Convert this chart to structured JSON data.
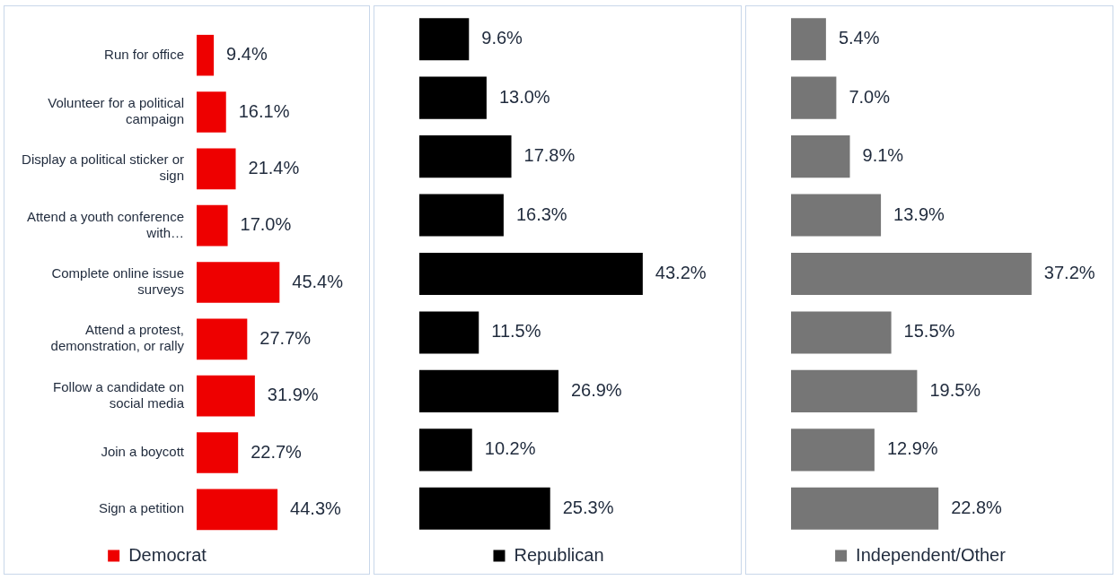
{
  "chart_data": [
    {
      "type": "bar",
      "orientation": "horizontal",
      "tick_labels": "y",
      "legend": "bottom",
      "categories": [
        "Run for office",
        "Volunteer for a political campaign",
        "Display a political sticker or sign",
        "Attend a youth conference with…",
        "Complete online issue surveys",
        "Attend a protest, demonstration, or rally",
        "Follow a candidate on social media",
        "Join a boycott",
        "Sign a petition"
      ],
      "series": [
        {
          "name": "Democrat",
          "color": "#ee0000",
          "values": [
            9.4,
            16.1,
            21.4,
            17.0,
            45.4,
            27.7,
            31.9,
            22.7,
            44.3
          ],
          "value_labels": [
            "9.4%",
            "16.1%",
            "21.4%",
            "17.0%",
            "45.4%",
            "27.7%",
            "31.9%",
            "22.7%",
            "44.3%"
          ]
        }
      ]
    },
    {
      "type": "bar",
      "orientation": "horizontal",
      "tick_labels": false,
      "legend": "bottom",
      "categories": [
        null,
        null,
        null,
        null,
        null,
        null,
        null,
        null,
        null
      ],
      "series": [
        {
          "name": "Republican",
          "color": "#000000",
          "values": [
            9.6,
            13.0,
            17.8,
            16.3,
            43.2,
            11.5,
            26.9,
            10.2,
            25.3
          ],
          "value_labels": [
            "9.6%",
            "13.0%",
            "17.8%",
            "16.3%",
            "43.2%",
            "11.5%",
            "26.9%",
            "10.2%",
            "25.3%"
          ]
        }
      ]
    },
    {
      "type": "bar",
      "orientation": "horizontal",
      "tick_labels": false,
      "legend": "bottom",
      "categories": [
        null,
        null,
        null,
        null,
        null,
        null,
        null,
        null,
        null
      ],
      "series": [
        {
          "name": "Independent/Other",
          "color": "#767676",
          "values": [
            5.4,
            7.0,
            9.1,
            13.9,
            37.2,
            15.5,
            19.5,
            12.9,
            22.8
          ],
          "value_labels": [
            "5.4%",
            "7.0%",
            "9.1%",
            "13.9%",
            "37.2%",
            "15.5%",
            "19.5%",
            "12.9%",
            "22.8%"
          ]
        }
      ]
    }
  ]
}
